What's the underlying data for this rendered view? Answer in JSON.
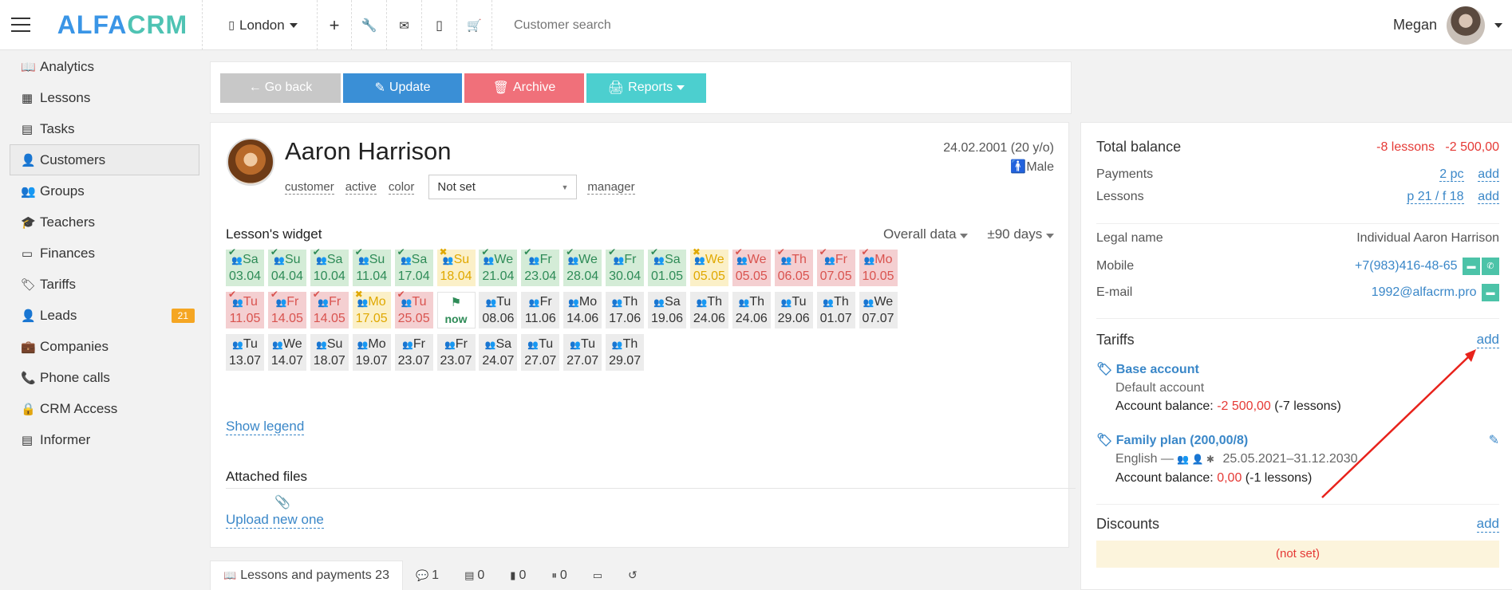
{
  "app": {
    "logo_part1": "ALFA",
    "logo_part2": "CRM",
    "branch": "London",
    "search_placeholder": "Customer search",
    "user_name": "Megan"
  },
  "sidebar": {
    "items": [
      {
        "label": "Analytics",
        "icon": "book-icon"
      },
      {
        "label": "Lessons",
        "icon": "calendar-icon"
      },
      {
        "label": "Tasks",
        "icon": "clipboard-icon"
      },
      {
        "label": "Customers",
        "icon": "user-icon"
      },
      {
        "label": "Groups",
        "icon": "users-icon"
      },
      {
        "label": "Teachers",
        "icon": "graduation-cap-icon"
      },
      {
        "label": "Finances",
        "icon": "money-icon"
      },
      {
        "label": "Tariffs",
        "icon": "tag-icon"
      },
      {
        "label": "Leads",
        "icon": "user-plus-icon"
      },
      {
        "label": "Companies",
        "icon": "briefcase-icon"
      },
      {
        "label": "Phone calls",
        "icon": "phone-icon"
      },
      {
        "label": "CRM Access",
        "icon": "lock-icon"
      },
      {
        "label": "Informer",
        "icon": "list-icon"
      }
    ],
    "leads_badge": "21"
  },
  "actions": {
    "back": "Go back",
    "update": "Update",
    "archive": "Archive",
    "reports": "Reports"
  },
  "customer": {
    "name": "Aaron Harrison",
    "birth": "24.02.2001 (20 y/o)",
    "gender": "Male",
    "tags": {
      "customer": "customer",
      "active": "active",
      "color": "color",
      "manager": "manager"
    },
    "select_value": "Not set"
  },
  "widget": {
    "title": "Lesson's widget",
    "filter": "Overall data",
    "range": "±90 days",
    "show_legend": "Show legend",
    "tiles": [
      {
        "day": "Sa",
        "date": "03.04",
        "status": "g"
      },
      {
        "day": "Su",
        "date": "04.04",
        "status": "g"
      },
      {
        "day": "Sa",
        "date": "10.04",
        "status": "g"
      },
      {
        "day": "Su",
        "date": "11.04",
        "status": "g"
      },
      {
        "day": "Sa",
        "date": "17.04",
        "status": "g"
      },
      {
        "day": "Su",
        "date": "18.04",
        "status": "y"
      },
      {
        "day": "We",
        "date": "21.04",
        "status": "g"
      },
      {
        "day": "Fr",
        "date": "23.04",
        "status": "g"
      },
      {
        "day": "We",
        "date": "28.04",
        "status": "g"
      },
      {
        "day": "Fr",
        "date": "30.04",
        "status": "g"
      },
      {
        "day": "Sa",
        "date": "01.05",
        "status": "g"
      },
      {
        "day": "We",
        "date": "05.05",
        "status": "y"
      },
      {
        "day": "We",
        "date": "05.05",
        "status": "r"
      },
      {
        "day": "Th",
        "date": "06.05",
        "status": "r"
      },
      {
        "day": "Fr",
        "date": "07.05",
        "status": "r"
      },
      {
        "day": "Mo",
        "date": "10.05",
        "status": "r"
      },
      {
        "day": "Tu",
        "date": "11.05",
        "status": "r"
      },
      {
        "day": "Fr",
        "date": "14.05",
        "status": "r"
      },
      {
        "day": "Fr",
        "date": "14.05",
        "status": "r"
      },
      {
        "day": "Mo",
        "date": "17.05",
        "status": "y"
      },
      {
        "day": "Tu",
        "date": "25.05",
        "status": "r"
      },
      {
        "day": "",
        "date": "now",
        "status": "now"
      },
      {
        "day": "Tu",
        "date": "08.06",
        "status": "n"
      },
      {
        "day": "Fr",
        "date": "11.06",
        "status": "n"
      },
      {
        "day": "Mo",
        "date": "14.06",
        "status": "n"
      },
      {
        "day": "Th",
        "date": "17.06",
        "status": "n"
      },
      {
        "day": "Sa",
        "date": "19.06",
        "status": "n"
      },
      {
        "day": "Th",
        "date": "24.06",
        "status": "n"
      },
      {
        "day": "Th",
        "date": "24.06",
        "status": "n"
      },
      {
        "day": "Tu",
        "date": "29.06",
        "status": "n"
      },
      {
        "day": "Th",
        "date": "01.07",
        "status": "n"
      },
      {
        "day": "We",
        "date": "07.07",
        "status": "n"
      },
      {
        "day": "Tu",
        "date": "13.07",
        "status": "n"
      },
      {
        "day": "We",
        "date": "14.07",
        "status": "n"
      },
      {
        "day": "Su",
        "date": "18.07",
        "status": "n"
      },
      {
        "day": "Mo",
        "date": "19.07",
        "status": "n"
      },
      {
        "day": "Fr",
        "date": "23.07",
        "status": "n"
      },
      {
        "day": "Fr",
        "date": "23.07",
        "status": "n"
      },
      {
        "day": "Sa",
        "date": "24.07",
        "status": "n"
      },
      {
        "day": "Tu",
        "date": "27.07",
        "status": "n"
      },
      {
        "day": "Tu",
        "date": "27.07",
        "status": "n"
      },
      {
        "day": "Th",
        "date": "29.07",
        "status": "n"
      }
    ]
  },
  "files": {
    "title": "Attached files",
    "upload": "Upload new one"
  },
  "balance": {
    "title": "Total balance",
    "lessons": "-8 lessons",
    "amount": "-2 500,00",
    "payments_label": "Payments",
    "payments_value": "2 pc",
    "lessons_label": "Lessons",
    "lessons_value": "p 21 / f 18",
    "add": "add",
    "legal_label": "Legal name",
    "legal_value": "Individual Aaron Harrison",
    "mobile_label": "Mobile",
    "mobile_value": "+7(983)416-48-65",
    "email_label": "E-mail",
    "email_value": "1992@alfacrm.pro"
  },
  "tariffs": {
    "title": "Tariffs",
    "t1_name": "Base account",
    "t1_sub": "Default account",
    "balance_label": "Account balance:",
    "t1_amount": "-2 500,00",
    "t1_lessons": "(-7 lessons)",
    "t2_name": "Family plan (200,00/8)",
    "t2_sub": "English —",
    "t2_dates": "25.05.2021–31.12.2030",
    "t2_amount": "0,00",
    "t2_lessons": "(-1 lessons)"
  },
  "discounts": {
    "title": "Discounts",
    "empty": "(not set)"
  },
  "tabs": [
    {
      "label": "Lessons and payments 23"
    },
    {
      "label": "1"
    },
    {
      "label": "0"
    },
    {
      "label": "0"
    },
    {
      "label": "0"
    },
    {
      "label": ""
    },
    {
      "label": ""
    }
  ],
  "colors": {
    "blue": "#3a8fd6",
    "red": "#f0707a",
    "teal": "#4ccfcf",
    "grey": "#c8c8c8",
    "accent_link": "#3a87c8"
  }
}
